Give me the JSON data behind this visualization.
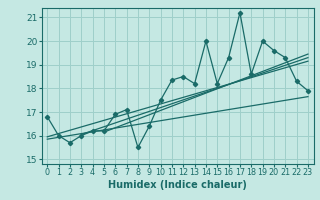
{
  "title": "",
  "xlabel": "Humidex (Indice chaleur)",
  "ylabel": "",
  "xlim": [
    -0.5,
    23.5
  ],
  "ylim": [
    14.8,
    21.4
  ],
  "yticks": [
    15,
    16,
    17,
    18,
    19,
    20,
    21
  ],
  "xticks": [
    0,
    1,
    2,
    3,
    4,
    5,
    6,
    7,
    8,
    9,
    10,
    11,
    12,
    13,
    14,
    15,
    16,
    17,
    18,
    19,
    20,
    21,
    22,
    23
  ],
  "background_color": "#c5e8e3",
  "grid_color": "#9ecfca",
  "line_color": "#1a6b68",
  "main_data_x": [
    0,
    1,
    2,
    3,
    4,
    5,
    6,
    7,
    8,
    9,
    10,
    11,
    12,
    13,
    14,
    15,
    16,
    17,
    18,
    19,
    20,
    21,
    22,
    23
  ],
  "main_data_y": [
    16.8,
    16.0,
    15.7,
    16.0,
    16.2,
    16.2,
    16.9,
    17.1,
    15.5,
    16.4,
    17.5,
    18.35,
    18.5,
    18.2,
    20.0,
    18.2,
    19.3,
    21.2,
    18.6,
    20.0,
    19.6,
    19.3,
    18.3,
    17.9
  ],
  "trend_line_points": [
    {
      "x": [
        0,
        23
      ],
      "y": [
        15.85,
        17.65
      ]
    },
    {
      "x": [
        0,
        23
      ],
      "y": [
        15.95,
        19.15
      ]
    },
    {
      "x": [
        3,
        23
      ],
      "y": [
        16.05,
        19.3
      ]
    },
    {
      "x": [
        5,
        23
      ],
      "y": [
        16.15,
        19.45
      ]
    }
  ]
}
